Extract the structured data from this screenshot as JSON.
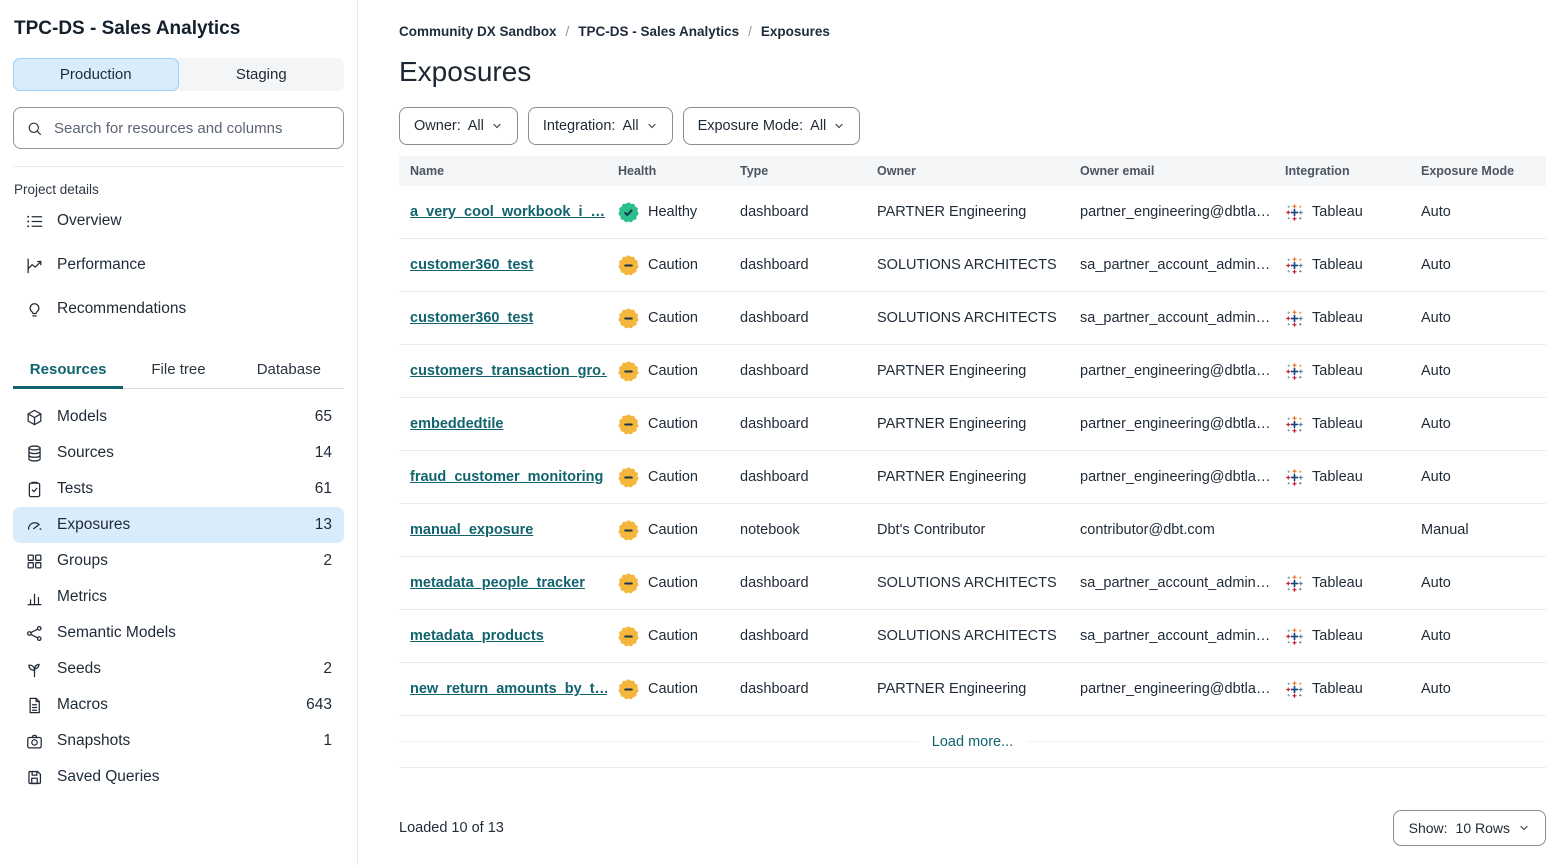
{
  "sidebar": {
    "project_title": "TPC-DS - Sales Analytics",
    "env_toggle": {
      "options": [
        "Production",
        "Staging"
      ],
      "selected": "Production"
    },
    "search": {
      "placeholder": "Search for resources and columns",
      "icon": "search-icon"
    },
    "project_details": {
      "label": "Project details",
      "items": [
        {
          "label": "Overview",
          "icon": "list-icon"
        },
        {
          "label": "Performance",
          "icon": "chart-line-icon"
        },
        {
          "label": "Recommendations",
          "icon": "lightbulb-icon"
        }
      ]
    },
    "tabs": [
      {
        "label": "Resources",
        "active": true
      },
      {
        "label": "File tree",
        "active": false
      },
      {
        "label": "Database",
        "active": false
      }
    ],
    "resources": [
      {
        "label": "Models",
        "count": "65",
        "icon": "cube-icon",
        "selected": false
      },
      {
        "label": "Sources",
        "count": "14",
        "icon": "database-icon",
        "selected": false
      },
      {
        "label": "Tests",
        "count": "61",
        "icon": "clipboard-check-icon",
        "selected": false
      },
      {
        "label": "Exposures",
        "count": "13",
        "icon": "gauge-icon",
        "selected": true
      },
      {
        "label": "Groups",
        "count": "2",
        "icon": "grid-icon",
        "selected": false
      },
      {
        "label": "Metrics",
        "count": "",
        "icon": "bar-chart-icon",
        "selected": false
      },
      {
        "label": "Semantic Models",
        "count": "",
        "icon": "graph-icon",
        "selected": false
      },
      {
        "label": "Seeds",
        "count": "2",
        "icon": "sprout-icon",
        "selected": false
      },
      {
        "label": "Macros",
        "count": "643",
        "icon": "document-icon",
        "selected": false
      },
      {
        "label": "Snapshots",
        "count": "1",
        "icon": "camera-icon",
        "selected": false
      },
      {
        "label": "Saved Queries",
        "count": "",
        "icon": "save-icon",
        "selected": false
      }
    ]
  },
  "breadcrumb": [
    {
      "label": "Community DX Sandbox"
    },
    {
      "label": "TPC-DS - Sales Analytics"
    },
    {
      "label": "Exposures"
    }
  ],
  "page": {
    "title": "Exposures"
  },
  "filters": [
    {
      "label": "Owner:",
      "value": "All"
    },
    {
      "label": "Integration:",
      "value": "All"
    },
    {
      "label": "Exposure Mode:",
      "value": "All"
    }
  ],
  "table": {
    "columns": [
      "Name",
      "Health",
      "Type",
      "Owner",
      "Owner email",
      "Integration",
      "Exposure Mode"
    ],
    "rows": [
      {
        "name": "a_very_cool_workbook_i_…",
        "health": "Healthy",
        "type": "dashboard",
        "owner": "PARTNER Engineering",
        "email": "partner_engineering@dbtla…",
        "integration": "Tableau",
        "mode": "Auto"
      },
      {
        "name": "customer360_test",
        "health": "Caution",
        "type": "dashboard",
        "owner": "SOLUTIONS ARCHITECTS",
        "email": "sa_partner_account_admin…",
        "integration": "Tableau",
        "mode": "Auto"
      },
      {
        "name": "customer360_test",
        "health": "Caution",
        "type": "dashboard",
        "owner": "SOLUTIONS ARCHITECTS",
        "email": "sa_partner_account_admin…",
        "integration": "Tableau",
        "mode": "Auto"
      },
      {
        "name": "customers_transaction_gro…",
        "health": "Caution",
        "type": "dashboard",
        "owner": "PARTNER Engineering",
        "email": "partner_engineering@dbtla…",
        "integration": "Tableau",
        "mode": "Auto"
      },
      {
        "name": "embeddedtile",
        "health": "Caution",
        "type": "dashboard",
        "owner": "PARTNER Engineering",
        "email": "partner_engineering@dbtla…",
        "integration": "Tableau",
        "mode": "Auto"
      },
      {
        "name": "fraud_customer_monitoring",
        "health": "Caution",
        "type": "dashboard",
        "owner": "PARTNER Engineering",
        "email": "partner_engineering@dbtla…",
        "integration": "Tableau",
        "mode": "Auto"
      },
      {
        "name": "manual_exposure",
        "health": "Caution",
        "type": "notebook",
        "owner": "Dbt's Contributor",
        "email": "contributor@dbt.com",
        "integration": "",
        "mode": "Manual"
      },
      {
        "name": "metadata_people_tracker",
        "health": "Caution",
        "type": "dashboard",
        "owner": "SOLUTIONS ARCHITECTS",
        "email": "sa_partner_account_admin…",
        "integration": "Tableau",
        "mode": "Auto"
      },
      {
        "name": "metadata_products",
        "health": "Caution",
        "type": "dashboard",
        "owner": "SOLUTIONS ARCHITECTS",
        "email": "sa_partner_account_admin…",
        "integration": "Tableau",
        "mode": "Auto"
      },
      {
        "name": "new_return_amounts_by_t…",
        "health": "Caution",
        "type": "dashboard",
        "owner": "PARTNER Engineering",
        "email": "partner_engineering@dbtla…",
        "integration": "Tableau",
        "mode": "Auto"
      }
    ],
    "load_more_label": "Load more...",
    "integration_icon": "tableau-icon",
    "health_icons": {
      "Healthy": "healthy-badge-icon",
      "Caution": "caution-badge-icon"
    }
  },
  "footer": {
    "loaded_text": "Loaded 10 of 13",
    "show_label": "Show:",
    "show_value": "10 Rows"
  },
  "colors": {
    "accent_teal": "#11646e",
    "healthy_green": "#2dbe8e",
    "caution_amber": "#f5b63c",
    "selected_blue_bg": "#d9ecfb",
    "badge_glyph": "#16374e"
  }
}
